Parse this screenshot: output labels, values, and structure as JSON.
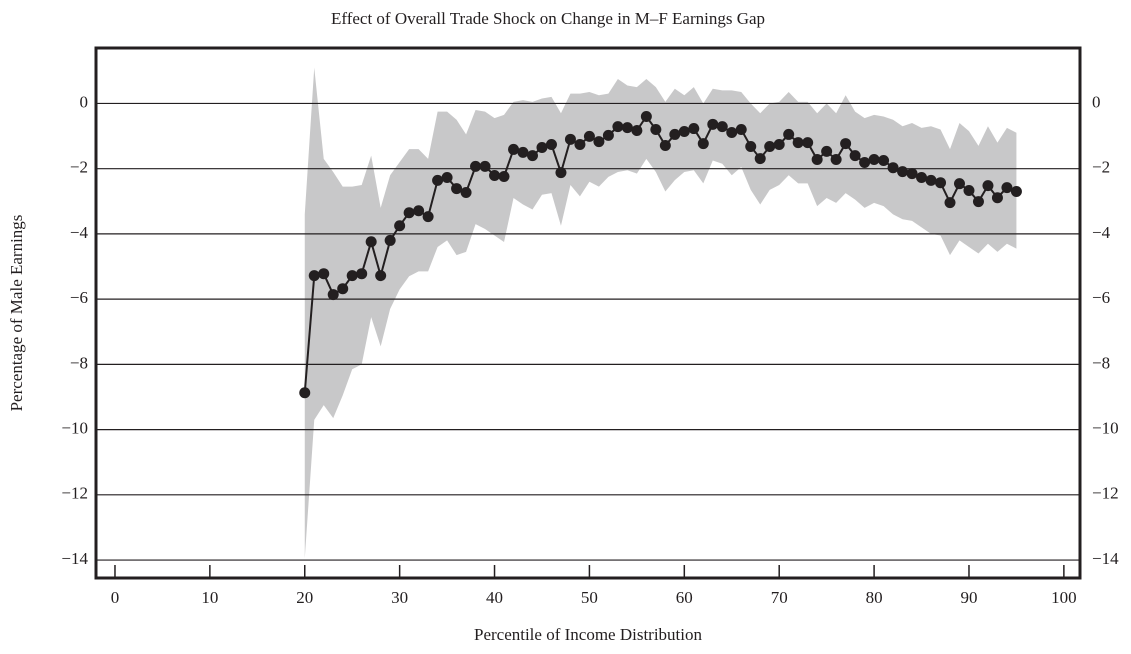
{
  "chart_data": {
    "type": "line",
    "title": "Effect of Overall Trade Shock on Change in M–F Earnings Gap",
    "xlabel": "Percentile of Income Distribution",
    "ylabel": "Percentage of Male Earnings",
    "x": [
      20,
      21,
      22,
      23,
      24,
      25,
      26,
      27,
      28,
      29,
      30,
      31,
      32,
      33,
      34,
      35,
      36,
      37,
      38,
      39,
      40,
      41,
      42,
      43,
      44,
      45,
      46,
      47,
      48,
      49,
      50,
      51,
      52,
      53,
      54,
      55,
      56,
      57,
      58,
      59,
      60,
      61,
      62,
      63,
      64,
      65,
      66,
      67,
      68,
      69,
      70,
      71,
      72,
      73,
      74,
      75,
      76,
      77,
      78,
      79,
      80,
      81,
      82,
      83,
      84,
      85,
      86,
      87,
      88,
      89,
      90,
      91,
      92,
      93,
      94,
      95
    ],
    "values": [
      -8.87,
      -5.28,
      -5.22,
      -5.86,
      -5.68,
      -5.28,
      -5.22,
      -4.24,
      -5.28,
      -4.2,
      -3.75,
      -3.35,
      -3.29,
      -3.47,
      -2.36,
      -2.27,
      -2.61,
      -2.73,
      -1.93,
      -1.93,
      -2.21,
      -2.24,
      -1.41,
      -1.5,
      -1.6,
      -1.35,
      -1.26,
      -2.12,
      -1.1,
      -1.26,
      -1.01,
      -1.17,
      -0.98,
      -0.71,
      -0.74,
      -0.83,
      -0.4,
      -0.8,
      -1.29,
      -0.95,
      -0.86,
      -0.77,
      -1.23,
      -0.64,
      -0.71,
      -0.89,
      -0.8,
      -1.32,
      -1.69,
      -1.32,
      -1.26,
      -0.95,
      -1.2,
      -1.2,
      -1.72,
      -1.47,
      -1.72,
      -1.23,
      -1.6,
      -1.81,
      -1.72,
      -1.75,
      -1.97,
      -2.09,
      -2.15,
      -2.27,
      -2.36,
      -2.43,
      -3.04,
      -2.46,
      -2.67,
      -3.01,
      -2.52,
      -2.89,
      -2.58,
      -2.7
    ],
    "upper": [
      -3.4,
      1.1,
      -1.7,
      -2.1,
      -2.55,
      -2.55,
      -2.5,
      -1.6,
      -3.2,
      -2.2,
      -1.8,
      -1.4,
      -1.4,
      -1.7,
      -0.25,
      -0.25,
      -0.5,
      -0.95,
      -0.2,
      -0.25,
      -0.45,
      -0.35,
      0.05,
      0.1,
      0.05,
      0.15,
      0.2,
      -0.3,
      0.3,
      0.3,
      0.35,
      0.25,
      0.3,
      0.75,
      0.55,
      0.5,
      0.75,
      0.5,
      0.05,
      0.45,
      0.25,
      0.5,
      0,
      0.45,
      0.4,
      0.4,
      0.35,
      0,
      -0.3,
      0,
      0.05,
      0.35,
      0.05,
      0.05,
      -0.3,
      0,
      -0.3,
      0.25,
      -0.25,
      -0.45,
      -0.35,
      -0.4,
      -0.5,
      -0.7,
      -0.6,
      -0.75,
      -0.7,
      -0.8,
      -1.4,
      -0.6,
      -0.85,
      -1.3,
      -0.7,
      -1.2,
      -0.75,
      -0.9
    ],
    "lower": [
      -13.95,
      -9.7,
      -9.25,
      -9.65,
      -8.95,
      -8.15,
      -8.0,
      -6.55,
      -7.45,
      -6.3,
      -5.7,
      -5.3,
      -5.15,
      -5.15,
      -4.4,
      -4.2,
      -4.65,
      -4.55,
      -3.7,
      -3.85,
      -4.05,
      -4.25,
      -2.9,
      -3.1,
      -3.25,
      -2.8,
      -2.75,
      -3.75,
      -2.5,
      -2.85,
      -2.4,
      -2.55,
      -2.25,
      -2.1,
      -2.05,
      -2.15,
      -1.7,
      -2.1,
      -2.7,
      -2.35,
      -2.1,
      -2.05,
      -2.45,
      -1.75,
      -1.85,
      -2.2,
      -1.95,
      -2.65,
      -3.1,
      -2.65,
      -2.5,
      -2.2,
      -2.45,
      -2.45,
      -3.15,
      -2.9,
      -3.05,
      -2.75,
      -2.95,
      -3.2,
      -3.05,
      -3.15,
      -3.4,
      -3.55,
      -3.6,
      -3.8,
      -4.0,
      -4.05,
      -4.65,
      -4.2,
      -4.4,
      -4.6,
      -4.3,
      -4.55,
      -4.3,
      -4.45
    ],
    "color": "#231f20",
    "band_color": "#c8c8c9",
    "xlim": [
      -2,
      101.7
    ],
    "ylim": [
      -14.55,
      1.7
    ],
    "xticks": [
      0,
      10,
      20,
      30,
      40,
      50,
      60,
      70,
      80,
      90,
      100
    ],
    "yticks": [
      0,
      {
        "value": -2,
        "label": "−2"
      },
      {
        "value": -4,
        "label": "−4"
      },
      {
        "value": -6,
        "label": "−6"
      },
      {
        "value": -8,
        "label": "−8"
      },
      {
        "value": -10,
        "label": "−10"
      },
      {
        "value": -12,
        "label": "−12"
      },
      {
        "value": -14,
        "label": "−14"
      }
    ],
    "grid": true
  }
}
